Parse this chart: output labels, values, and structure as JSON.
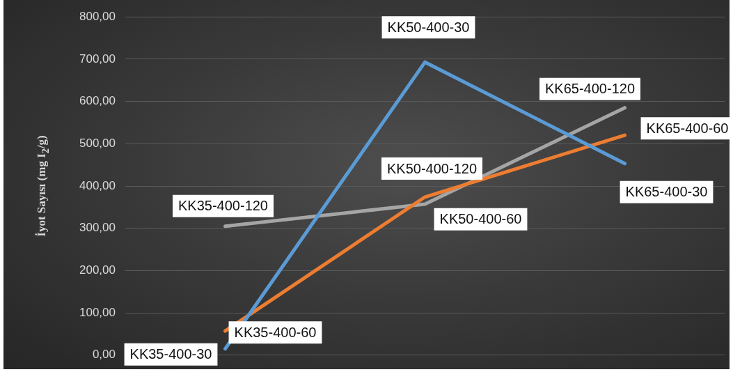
{
  "chart_data": {
    "type": "line",
    "ylabel": "İyot Sayısı (mg I$_{2}$/g)",
    "categories": [
      null,
      null,
      null
    ],
    "series": [
      {
        "color": "#5b9bd5",
        "values": [
          15,
          693,
          453
        ],
        "value_labels": [
          "KK35-400-30",
          "KK50-400-30",
          "KK65-400-30"
        ]
      },
      {
        "color": "#ed7d31",
        "values": [
          57,
          374,
          520
        ],
        "value_labels": [
          "KK35-400-60",
          "KK50-400-60",
          "KK65-400-60"
        ]
      },
      {
        "color": "#a5a5a5",
        "values": [
          305,
          357,
          585
        ],
        "value_labels": [
          "KK35-400-120",
          "KK50-400-120",
          "KK65-400-120"
        ]
      }
    ],
    "ylim": [
      0,
      800
    ],
    "yticks": [
      {
        "value": 0,
        "label": "0,00"
      },
      {
        "value": 100,
        "label": "100,00"
      },
      {
        "value": 200,
        "label": "200,00"
      },
      {
        "value": 300,
        "label": "300,00"
      },
      {
        "value": 400,
        "label": "400,00"
      },
      {
        "value": 500,
        "label": "500,00"
      },
      {
        "value": 600,
        "label": "600,00"
      },
      {
        "value": 700,
        "label": "700,00"
      },
      {
        "value": 800,
        "label": "800,00"
      }
    ],
    "grid": "y",
    "legend": false,
    "tick_labels": "y",
    "marker": "none",
    "line_style": "solid"
  }
}
